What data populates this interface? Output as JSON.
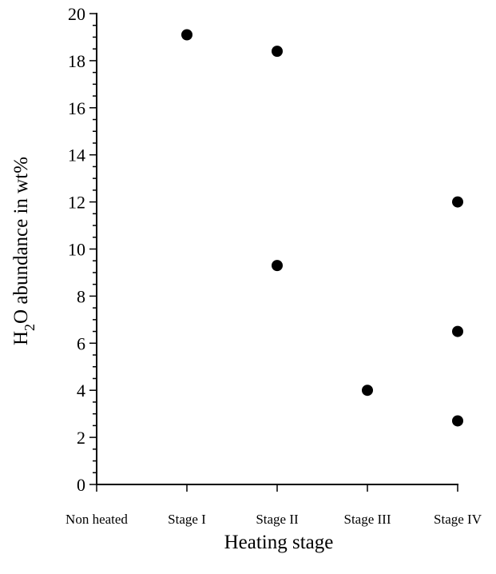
{
  "chart_data": {
    "type": "scatter",
    "title": "",
    "xlabel": "Heating stage",
    "ylabel": {
      "prefix": "H",
      "subscript": "2",
      "suffix": "O abundance in wt%"
    },
    "categories": [
      "Non heated",
      "Stage I",
      "Stage II",
      "Stage III",
      "Stage IV"
    ],
    "ylim": [
      0,
      20
    ],
    "y_major_ticks": [
      0,
      2,
      4,
      6,
      8,
      10,
      12,
      14,
      16,
      18,
      20
    ],
    "y_minor_step": 0.5,
    "grid": false,
    "points": [
      {
        "category": "Stage I",
        "y": 19.1
      },
      {
        "category": "Stage II",
        "y": 18.4
      },
      {
        "category": "Stage II",
        "y": 9.3
      },
      {
        "category": "Stage III",
        "y": 4.0
      },
      {
        "category": "Stage IV",
        "y": 12.0
      },
      {
        "category": "Stage IV",
        "y": 6.5
      },
      {
        "category": "Stage IV",
        "y": 2.7
      }
    ],
    "marker_color": "#000000"
  }
}
